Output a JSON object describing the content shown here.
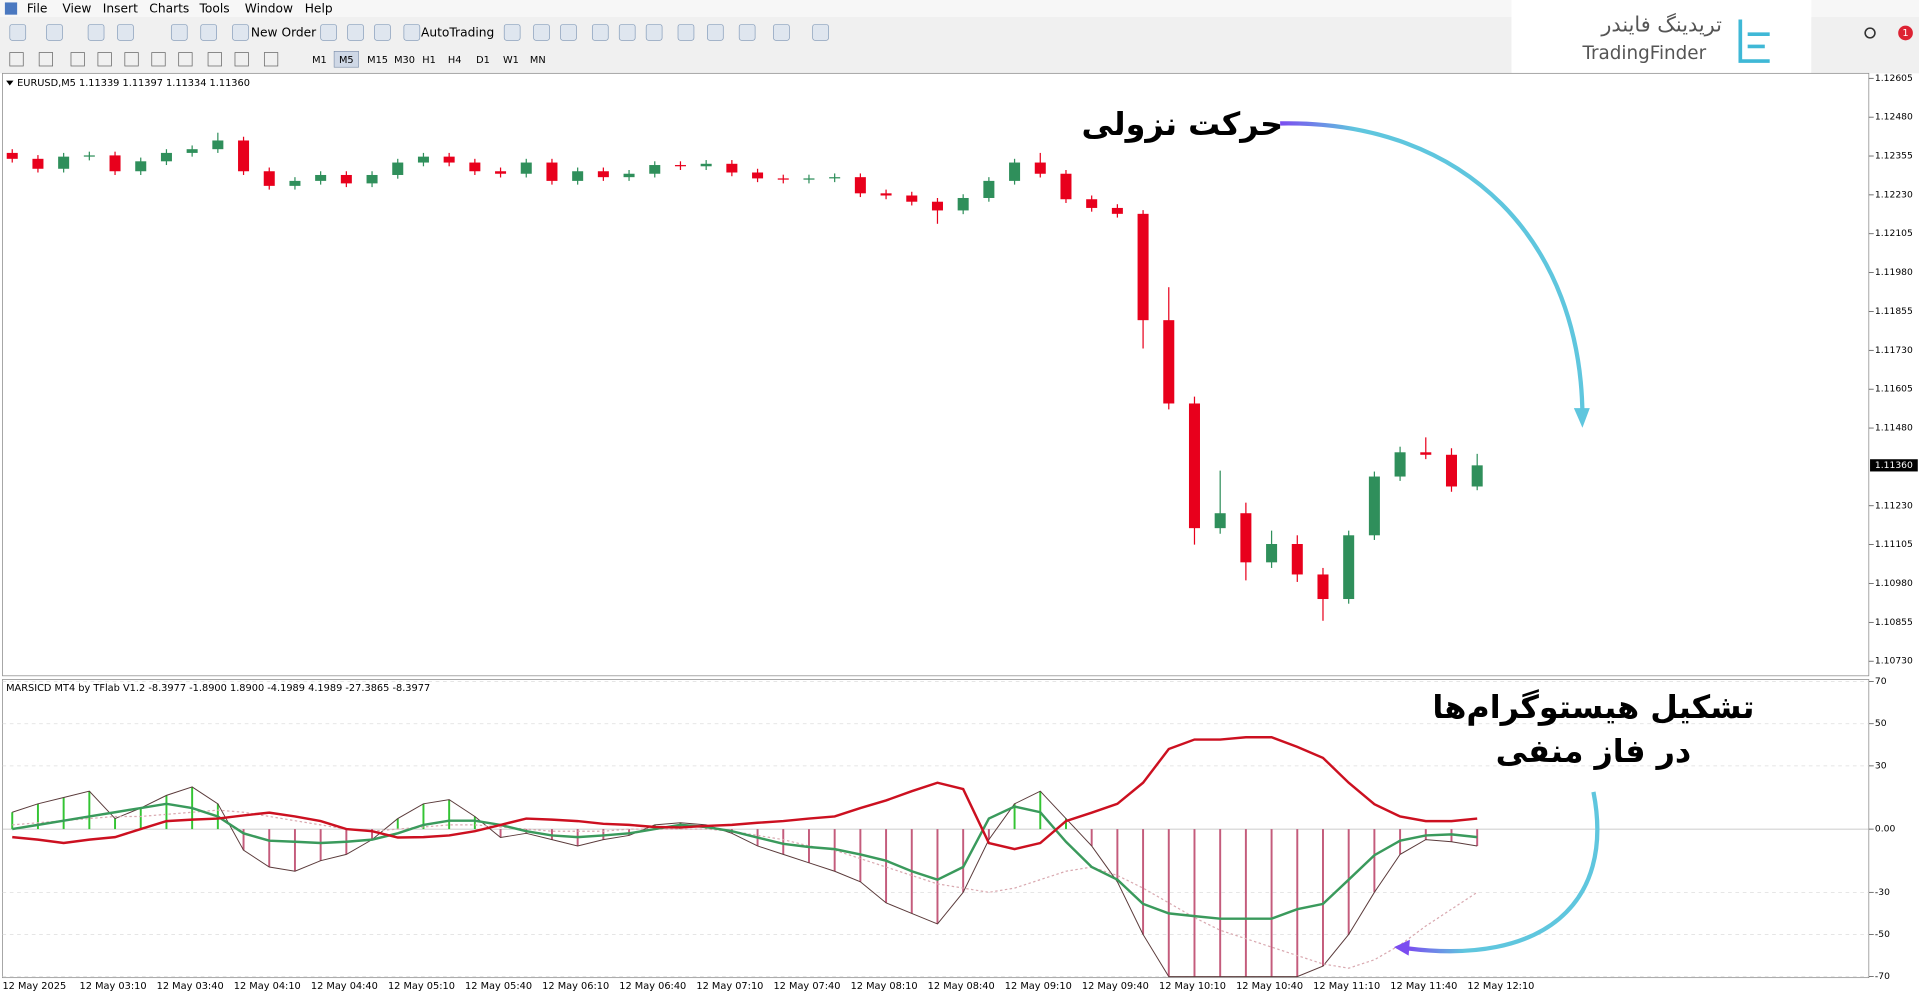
{
  "menu": [
    "File",
    "View",
    "Insert",
    "Charts",
    "Tools",
    "Window",
    "Help"
  ],
  "toolbar": {
    "new_order": "New Order",
    "auto_trading": "AutoTrading",
    "timeframes": [
      "M1",
      "M5",
      "M15",
      "M30",
      "H1",
      "H4",
      "D1",
      "W1",
      "MN"
    ]
  },
  "logo": {
    "persian": "تریدینگ فایندر",
    "latin": "TradingFinder"
  },
  "notification_count": 1,
  "chart_data": [
    {
      "type": "candlestick",
      "title": "EURUSD,M5 1.11339 1.11397 1.11334 1.11360",
      "categories": [
        "12 May 2025",
        null,
        null,
        "12 May 03:10",
        null,
        null,
        "12 May 03:40",
        null,
        null,
        "12 May 04:10",
        null,
        null,
        "12 May 04:40",
        null,
        null,
        "12 May 05:10",
        null,
        null,
        "12 May 05:40",
        null,
        null,
        "12 May 06:10",
        null,
        null,
        "12 May 06:40",
        null,
        null,
        "12 May 07:10",
        null,
        null,
        "12 May 07:40",
        null,
        null,
        "12 May 08:10",
        null,
        null,
        "12 May 08:40",
        null,
        null,
        "12 May 09:10",
        null,
        null,
        "12 May 09:40",
        null,
        null,
        "12 May 10:10",
        null,
        null,
        "12 May 10:40",
        null,
        null,
        "12 May 11:10",
        null,
        null,
        "12 May 11:40",
        null,
        null,
        "12 May 12:10"
      ],
      "open": [
        1.12365,
        1.12346,
        1.12314,
        1.12353,
        1.12357,
        1.12306,
        1.12338,
        1.12365,
        1.12377,
        1.12405,
        1.12306,
        1.12259,
        1.12275,
        1.12294,
        1.12267,
        1.12294,
        1.12334,
        1.12353,
        1.12334,
        1.12306,
        1.12298,
        1.12334,
        1.12275,
        1.12306,
        1.12287,
        1.12298,
        1.12326,
        1.12322,
        1.1233,
        1.12302,
        1.12283,
        1.12279,
        1.12283,
        1.12287,
        1.12235,
        1.12228,
        1.12208,
        1.1218,
        1.1222,
        1.12275,
        1.12334,
        1.12298,
        1.12216,
        1.12188,
        1.12169,
        1.11827,
        1.11559,
        1.11158,
        1.11206,
        1.11048,
        1.11107,
        1.11009,
        1.1093,
        1.11135,
        1.11324,
        1.11402,
        1.11394,
        1.11292
      ],
      "high": [
        1.12377,
        1.12358,
        1.12365,
        1.12369,
        1.12369,
        1.1235,
        1.12377,
        1.12389,
        1.1243,
        1.12417,
        1.12318,
        1.12287,
        1.12306,
        1.12306,
        1.12306,
        1.12346,
        1.12365,
        1.12365,
        1.12346,
        1.12318,
        1.12346,
        1.12346,
        1.12318,
        1.12318,
        1.1231,
        1.12338,
        1.12338,
        1.12342,
        1.12342,
        1.12314,
        1.12295,
        1.12295,
        1.12299,
        1.12299,
        1.12247,
        1.1224,
        1.1222,
        1.12232,
        1.12287,
        1.12346,
        1.12365,
        1.1231,
        1.12228,
        1.122,
        1.12181,
        1.11933,
        1.11581,
        1.11343,
        1.1124,
        1.1115,
        1.11135,
        1.1103,
        1.1115,
        1.1134,
        1.1142,
        1.1145,
        1.11415,
        1.11397
      ],
      "low": [
        1.12334,
        1.12302,
        1.12302,
        1.12341,
        1.12294,
        1.12294,
        1.12326,
        1.12353,
        1.12365,
        1.12294,
        1.12247,
        1.12247,
        1.12263,
        1.12255,
        1.12255,
        1.12282,
        1.12322,
        1.12322,
        1.12294,
        1.12286,
        1.12286,
        1.12263,
        1.12263,
        1.12275,
        1.12275,
        1.12286,
        1.1231,
        1.1231,
        1.1229,
        1.12271,
        1.12267,
        1.12267,
        1.12271,
        1.12223,
        1.12216,
        1.12196,
        1.12137,
        1.12168,
        1.12208,
        1.12263,
        1.12286,
        1.12204,
        1.12176,
        1.12157,
        1.11736,
        1.1154,
        1.11105,
        1.1114,
        1.1099,
        1.1103,
        1.10985,
        1.1086,
        1.10915,
        1.1112,
        1.1131,
        1.1138,
        1.11275,
        1.1128
      ],
      "close": [
        1.12346,
        1.12314,
        1.12353,
        1.12357,
        1.12306,
        1.12338,
        1.12365,
        1.12377,
        1.12405,
        1.12306,
        1.12259,
        1.12275,
        1.12294,
        1.12267,
        1.12294,
        1.12334,
        1.12353,
        1.12334,
        1.12306,
        1.12298,
        1.12334,
        1.12275,
        1.12306,
        1.12287,
        1.12298,
        1.12326,
        1.12322,
        1.1233,
        1.12302,
        1.12283,
        1.12279,
        1.12283,
        1.12287,
        1.12235,
        1.12228,
        1.12208,
        1.1218,
        1.1222,
        1.12275,
        1.12334,
        1.12298,
        1.12216,
        1.12188,
        1.12169,
        1.11827,
        1.11559,
        1.11158,
        1.11206,
        1.11048,
        1.11107,
        1.11009,
        1.1093,
        1.11135,
        1.11324,
        1.11402,
        1.11394,
        1.11292,
        1.1136
      ],
      "up_color": "#2f8f5b",
      "down_color": "#e8001c",
      "ylim": [
        1.10683,
        1.12621
      ],
      "yticks": [
        1.12605,
        {
          "value": 1.1248,
          "label": "1.12480"
        },
        1.12355,
        {
          "value": 1.1223,
          "label": "1.12230"
        },
        1.12105,
        {
          "value": 1.1198,
          "label": "1.11980"
        },
        1.11855,
        {
          "value": 1.1173,
          "label": "1.11730"
        },
        1.11605,
        {
          "value": 1.1148,
          "label": "1.11480"
        },
        {
          "value": 1.1123,
          "label": "1.11230"
        },
        1.11105,
        {
          "value": 1.1098,
          "label": "1.10980"
        },
        1.10855,
        {
          "value": 1.1073,
          "label": "1.10730"
        }
      ],
      "current_price": {
        "value": 1.1136,
        "label": "1.11360"
      },
      "annotation": [
        "حرکت نزولی"
      ]
    },
    {
      "type": "line",
      "title": "MARSICD MT4 by TFlab V1.2 -8.3977 -1.8900 1.8900 -4.1989 4.1989 -27.3865 -8.3977",
      "ylim": [
        -70.5,
        71
      ],
      "yticks": [
        70,
        50,
        30,
        {
          "value": 0,
          "label": "0.00"
        },
        -30,
        -50,
        -70
      ],
      "grid": true,
      "series": [
        {
          "style": "histogram",
          "color": "#33c433",
          "negative_color": "#c45c7c",
          "outline_color": "#5a3a3a",
          "values": [
            8,
            12,
            15,
            18,
            5,
            10,
            16,
            20,
            12,
            -10,
            -18,
            -20,
            -15,
            -12,
            -5,
            5,
            12,
            14,
            6,
            -4,
            -2,
            -5,
            -8,
            -5,
            -3,
            2,
            3,
            2,
            -2,
            -8,
            -12,
            -16,
            -20,
            -25,
            -35,
            -40,
            -45,
            -30,
            -5,
            12,
            18,
            5,
            -8,
            -25,
            -50,
            -70,
            -70,
            -70,
            -70,
            -70,
            -70,
            -65,
            -50,
            -30,
            -12,
            -5,
            -6,
            -8
          ]
        },
        {
          "style": "dotted",
          "color": "#d9a9b0",
          "values": [
            2,
            3,
            4,
            5,
            6,
            6,
            7,
            8,
            9,
            8,
            6,
            4,
            2,
            0,
            -1,
            0,
            1,
            2,
            2,
            1,
            0,
            -1,
            -1,
            -1,
            0,
            0,
            0,
            0,
            -1,
            -3,
            -5,
            -8,
            -10,
            -14,
            -18,
            -22,
            -26,
            -28,
            -30,
            -28,
            -24,
            -20,
            -18,
            -22,
            -28,
            -35,
            -42,
            -48,
            -52,
            -56,
            -60,
            -64,
            -66,
            -62,
            -55,
            -46,
            -38,
            -30
          ]
        },
        {
          "style": "line",
          "color": "#3a9a5c",
          "values": [
            0,
            2,
            4,
            6,
            8,
            10,
            12,
            10,
            6,
            -2,
            -5.5,
            -6,
            -6.6,
            -6,
            -5,
            -2,
            2,
            4,
            4,
            2,
            -1,
            -3,
            -3.8,
            -3,
            -2,
            0,
            2,
            1,
            -1,
            -4,
            -7,
            -8.5,
            -9.5,
            -12,
            -15,
            -20,
            -24,
            -18,
            5,
            10.7,
            8,
            -6,
            -18,
            -24,
            -35.5,
            -40,
            -41.3,
            -42.5,
            -42.5,
            -42.5,
            -38,
            -35.5,
            -24,
            -12.4,
            -5.5,
            -3,
            -2.5,
            -3.8
          ]
        },
        {
          "style": "line",
          "color": "#cc1020",
          "values": [
            -3.8,
            -5,
            -6.6,
            -5,
            -3.8,
            0,
            3.8,
            4.5,
            5,
            6.5,
            7.8,
            6,
            3.8,
            0,
            -1,
            -4,
            -3.8,
            -3,
            -1,
            2,
            5,
            4.5,
            3.8,
            2.5,
            2,
            1,
            0.8,
            1.5,
            2,
            3,
            3.8,
            5,
            6,
            10,
            13.6,
            18,
            22,
            19,
            -6.6,
            -9.5,
            -6.6,
            3.8,
            7.8,
            12,
            22,
            38,
            42.5,
            42.5,
            43.6,
            43.6,
            39,
            33.8,
            22,
            11.8,
            6,
            3.8,
            3.8,
            5
          ]
        }
      ],
      "annotation": [
        "تشکیل هیستوگرام‌ها",
        "در فاز منفی"
      ]
    }
  ]
}
